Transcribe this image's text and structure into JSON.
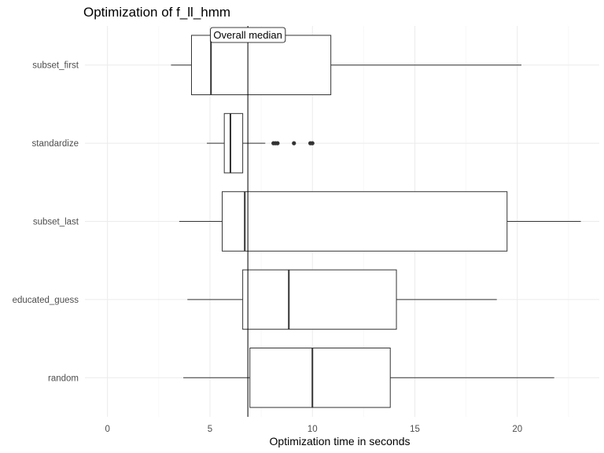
{
  "chart_data": {
    "type": "boxplot",
    "orientation": "horizontal",
    "title": "Optimization of f_ll_hmm",
    "xlabel": "Optimization time in seconds",
    "ylabel": "",
    "xlim": [
      -1.1,
      24.0
    ],
    "x_ticks": [
      0,
      5,
      10,
      15,
      20
    ],
    "grid": true,
    "legend": "none",
    "categories": [
      "subset_first",
      "standardize",
      "subset_last",
      "educated_guess",
      "random"
    ],
    "boxes": [
      {
        "category": "subset_first",
        "whisker_low": 3.1,
        "q1": 4.1,
        "median": 5.05,
        "q3": 10.9,
        "whisker_high": 20.2,
        "outliers": []
      },
      {
        "category": "standardize",
        "whisker_low": 4.85,
        "q1": 5.7,
        "median": 6.0,
        "q3": 6.6,
        "whisker_high": 7.7,
        "outliers": [
          8.1,
          8.2,
          8.3,
          9.1,
          9.9,
          10.0
        ]
      },
      {
        "category": "subset_last",
        "whisker_low": 3.5,
        "q1": 5.6,
        "median": 6.7,
        "q3": 19.5,
        "whisker_high": 23.1,
        "outliers": []
      },
      {
        "category": "educated_guess",
        "whisker_low": 3.9,
        "q1": 6.6,
        "median": 8.85,
        "q3": 14.1,
        "whisker_high": 19.0,
        "outliers": []
      },
      {
        "category": "random",
        "whisker_low": 3.7,
        "q1": 6.95,
        "median": 10.0,
        "q3": 13.8,
        "whisker_high": 21.8,
        "outliers": []
      }
    ],
    "reference_line": {
      "x": 6.85,
      "label": "Overall median"
    }
  },
  "colors": {
    "grid_major": "#ebebeb",
    "grid_minor": "#f4f4f4",
    "box_stroke": "#333333",
    "box_fill": "#ffffff",
    "reference_line": "#000000",
    "tick_text": "#4d4d4d",
    "outlier": "#333333"
  }
}
